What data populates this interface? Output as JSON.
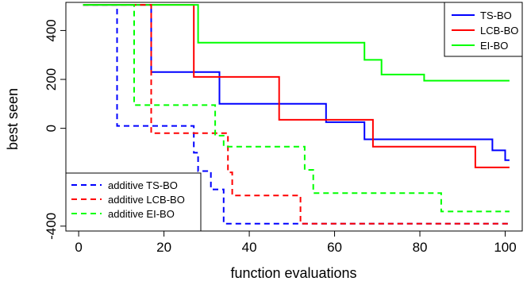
{
  "chart_data": {
    "type": "line",
    "xlabel": "function evaluations",
    "ylabel": "best seen",
    "xlim": [
      -3,
      104
    ],
    "ylim": [
      -420,
      515
    ],
    "x_ticks": [
      0,
      20,
      40,
      60,
      80,
      100
    ],
    "y_ticks": [
      -400,
      0,
      200,
      400
    ],
    "x_tick_labels": [
      "0",
      "20",
      "40",
      "60",
      "80",
      "100"
    ],
    "y_tick_labels": [
      "-400",
      "0",
      "200",
      "400"
    ],
    "grid": false,
    "legends": [
      {
        "position": "top-right",
        "entries": [
          "TS-BO",
          "LCB-BO",
          "EI-BO"
        ]
      },
      {
        "position": "bottom-left",
        "entries": [
          "additive TS-BO",
          "additive LCB-BO",
          "additive EI-BO"
        ]
      }
    ],
    "series": [
      {
        "name": "TS-BO",
        "color": "#0000ff",
        "dash": "solid",
        "step": true,
        "points": [
          [
            1,
            505
          ],
          [
            17,
            505
          ],
          [
            17,
            230
          ],
          [
            33,
            230
          ],
          [
            33,
            100
          ],
          [
            58,
            100
          ],
          [
            58,
            25
          ],
          [
            67,
            25
          ],
          [
            67,
            -45
          ],
          [
            97,
            -45
          ],
          [
            97,
            -90
          ],
          [
            100,
            -90
          ],
          [
            100,
            -130
          ],
          [
            101,
            -130
          ]
        ]
      },
      {
        "name": "LCB-BO",
        "color": "#ff0000",
        "dash": "solid",
        "step": true,
        "points": [
          [
            1,
            505
          ],
          [
            27,
            505
          ],
          [
            27,
            210
          ],
          [
            47,
            210
          ],
          [
            47,
            35
          ],
          [
            69,
            35
          ],
          [
            69,
            -75
          ],
          [
            93,
            -75
          ],
          [
            93,
            -160
          ],
          [
            101,
            -160
          ]
        ]
      },
      {
        "name": "EI-BO",
        "color": "#00ff00",
        "dash": "solid",
        "step": true,
        "points": [
          [
            1,
            505
          ],
          [
            28,
            505
          ],
          [
            28,
            350
          ],
          [
            67,
            350
          ],
          [
            67,
            280
          ],
          [
            71,
            280
          ],
          [
            71,
            220
          ],
          [
            81,
            220
          ],
          [
            81,
            195
          ],
          [
            101,
            195
          ]
        ]
      },
      {
        "name": "additive TS-BO",
        "color": "#0000ff",
        "dash": "dashed",
        "step": true,
        "points": [
          [
            1,
            505
          ],
          [
            9,
            505
          ],
          [
            9,
            10
          ],
          [
            27,
            10
          ],
          [
            27,
            -100
          ],
          [
            28,
            -100
          ],
          [
            28,
            -175
          ],
          [
            31,
            -175
          ],
          [
            31,
            -250
          ],
          [
            34,
            -250
          ],
          [
            34,
            -390
          ],
          [
            101,
            -390
          ]
        ]
      },
      {
        "name": "additive LCB-BO",
        "color": "#ff0000",
        "dash": "dashed",
        "step": true,
        "points": [
          [
            1,
            505
          ],
          [
            17,
            505
          ],
          [
            17,
            -20
          ],
          [
            35,
            -20
          ],
          [
            35,
            -180
          ],
          [
            36,
            -180
          ],
          [
            36,
            -275
          ],
          [
            52,
            -275
          ],
          [
            52,
            -390
          ],
          [
            101,
            -390
          ]
        ]
      },
      {
        "name": "additive EI-BO",
        "color": "#00ff00",
        "dash": "dashed",
        "step": true,
        "points": [
          [
            1,
            505
          ],
          [
            13,
            505
          ],
          [
            13,
            95
          ],
          [
            32,
            95
          ],
          [
            32,
            -30
          ],
          [
            34,
            -30
          ],
          [
            34,
            -75
          ],
          [
            53,
            -75
          ],
          [
            53,
            -170
          ],
          [
            55,
            -170
          ],
          [
            55,
            -265
          ],
          [
            85,
            -265
          ],
          [
            85,
            -340
          ],
          [
            101,
            -340
          ]
        ]
      }
    ]
  }
}
